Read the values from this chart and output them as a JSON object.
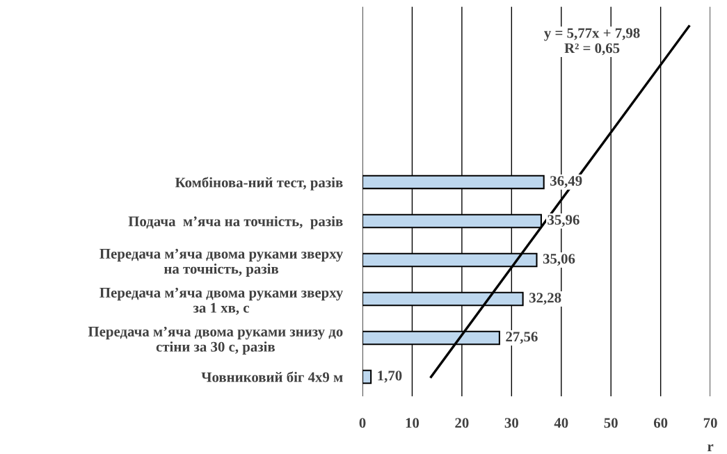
{
  "chart_data": {
    "type": "bar",
    "orientation": "horizontal",
    "categories": [
      null,
      null,
      null,
      null,
      "Комбінова-ний тест, разів",
      "Подача  м’яча на точність,  разів",
      "Передача м’яча двома руками зверху\nна точність, разів",
      "Передача м’яча двома руками зверху\nза 1 хв, с",
      "Передача м’яча двома руками знизу до\nстіни за 30 с, разів",
      "Човниковий біг 4х9 м"
    ],
    "series": [
      {
        "color": "#bdd7ee",
        "values": [
          null,
          null,
          null,
          null,
          36.49,
          35.96,
          35.06,
          32.28,
          27.56,
          1.7
        ],
        "value_labels": [
          null,
          null,
          null,
          null,
          "36,49",
          "35,96",
          "35,06",
          "32,28",
          "27,56",
          "1,70"
        ]
      },
      {
        "type": "line",
        "color": "#000000",
        "values": [
          65.7,
          null,
          null,
          null,
          null,
          null,
          null,
          null,
          null,
          13.8
        ]
      }
    ],
    "xlim": [
      0,
      70
    ],
    "xticks": [
      0,
      10,
      20,
      30,
      40,
      50,
      60,
      70
    ],
    "xlabel": "r",
    "grid": "x",
    "legend": false,
    "annotations": [
      "y = 5,77x + 7,98\nR² = 0,65"
    ]
  }
}
